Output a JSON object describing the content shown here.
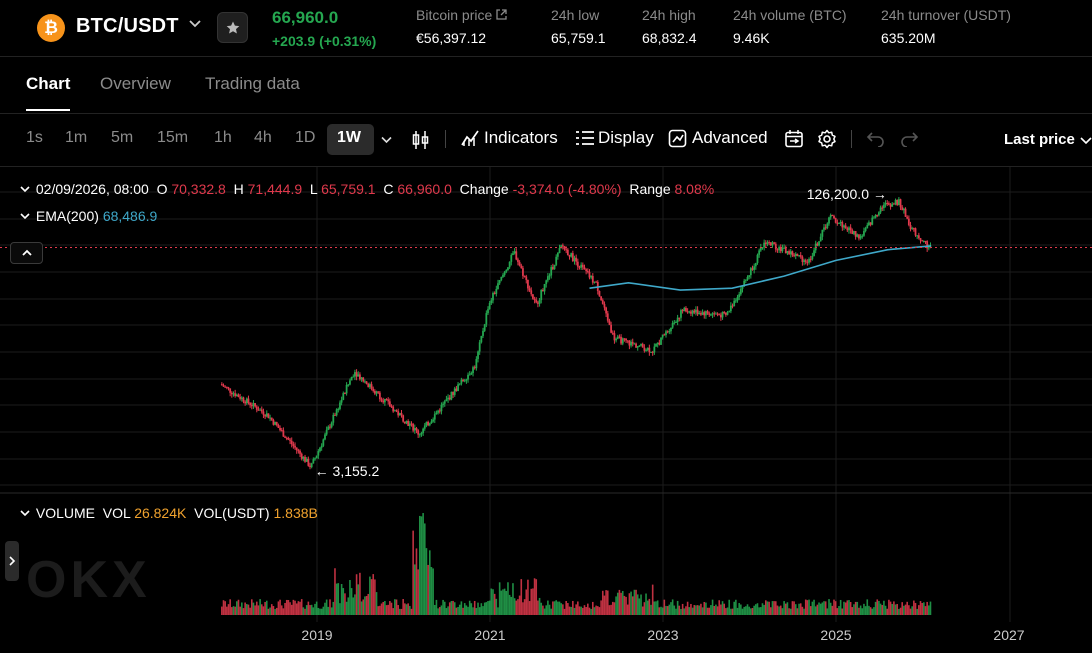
{
  "ticker": {
    "coin_logo_glyph": "₿",
    "pair": "BTC/USDT",
    "last_price": "66,960.0",
    "change": "+203.9 (+0.31%)",
    "stats": [
      {
        "label": "Bitcoin price",
        "value": "€56,397.12"
      },
      {
        "label": "24h low",
        "value": "65,759.1"
      },
      {
        "label": "24h high",
        "value": "68,832.4"
      },
      {
        "label": "24h volume (BTC)",
        "value": "9.46K"
      },
      {
        "label": "24h turnover (USDT)",
        "value": "635.20M"
      }
    ]
  },
  "tabs": [
    {
      "label": "Chart",
      "active": true
    },
    {
      "label": "Overview",
      "active": false
    },
    {
      "label": "Trading data",
      "active": false
    }
  ],
  "toolbar": {
    "timeframes": [
      "1s",
      "1m",
      "5m",
      "15m",
      "1h",
      "4h",
      "1D",
      "1W"
    ],
    "active_timeframe": "1W",
    "indicators_label": "Indicators",
    "display_label": "Display",
    "advanced_label": "Advanced",
    "price_type": "Last price"
  },
  "legend": {
    "date": "02/09/2026, 08:00",
    "o_label": "O",
    "o": "70,332.8",
    "h_label": "H",
    "h": "71,444.9",
    "l_label": "L",
    "l": "65,759.1",
    "c_label": "C",
    "c": "66,960.0",
    "change_label": "Change",
    "change": "-3,374.0 (-4.80%)",
    "range_label": "Range",
    "range": "8.08%",
    "ema_label": "EMA(200)",
    "ema": "68,486.9",
    "volume_label": "VOLUME",
    "vol_label": "VOL",
    "vol": "26.824K",
    "vol_usdt_label": "VOL(USDT)",
    "vol_usdt": "1.838B"
  },
  "chart_data": {
    "type": "candlestick",
    "x_axis_labels": [
      "2019",
      "2021",
      "2023",
      "2025",
      "2027"
    ],
    "high_marker": "126,200.0",
    "low_marker": "3,155.2",
    "watermark": "OKX",
    "colors": {
      "up": "#25a750",
      "down": "#e0394c",
      "ema": "#3fa8c9",
      "last_price_line": "#e0394c",
      "grid": "#1c1c1c"
    },
    "price_anchors": [
      {
        "year": 2017.9,
        "price": 10000
      },
      {
        "year": 2018.45,
        "price": 6500
      },
      {
        "year": 2018.95,
        "price": 3155.2
      },
      {
        "year": 2019.45,
        "price": 12000
      },
      {
        "year": 2020.2,
        "price": 5000
      },
      {
        "year": 2020.85,
        "price": 13000
      },
      {
        "year": 2021.0,
        "price": 30000
      },
      {
        "year": 2021.3,
        "price": 63000
      },
      {
        "year": 2021.55,
        "price": 30000
      },
      {
        "year": 2021.85,
        "price": 69000
      },
      {
        "year": 2022.25,
        "price": 40000
      },
      {
        "year": 2022.45,
        "price": 19000
      },
      {
        "year": 2022.9,
        "price": 16000
      },
      {
        "year": 2023.25,
        "price": 28000
      },
      {
        "year": 2023.75,
        "price": 26000
      },
      {
        "year": 2024.0,
        "price": 45000
      },
      {
        "year": 2024.2,
        "price": 73000
      },
      {
        "year": 2024.7,
        "price": 55000
      },
      {
        "year": 2024.95,
        "price": 103000
      },
      {
        "year": 2025.3,
        "price": 77000
      },
      {
        "year": 2025.55,
        "price": 120000
      },
      {
        "year": 2025.75,
        "price": 126200
      },
      {
        "year": 2025.9,
        "price": 86000
      },
      {
        "year": 2026.1,
        "price": 66960
      }
    ],
    "ema_anchors": [
      {
        "year": 2022.15,
        "price": 38000
      },
      {
        "year": 2022.6,
        "price": 41000
      },
      {
        "year": 2023.2,
        "price": 37000
      },
      {
        "year": 2023.8,
        "price": 38000
      },
      {
        "year": 2024.4,
        "price": 45000
      },
      {
        "year": 2025.0,
        "price": 56000
      },
      {
        "year": 2025.6,
        "price": 65000
      },
      {
        "year": 2026.1,
        "price": 68486.9
      }
    ]
  }
}
